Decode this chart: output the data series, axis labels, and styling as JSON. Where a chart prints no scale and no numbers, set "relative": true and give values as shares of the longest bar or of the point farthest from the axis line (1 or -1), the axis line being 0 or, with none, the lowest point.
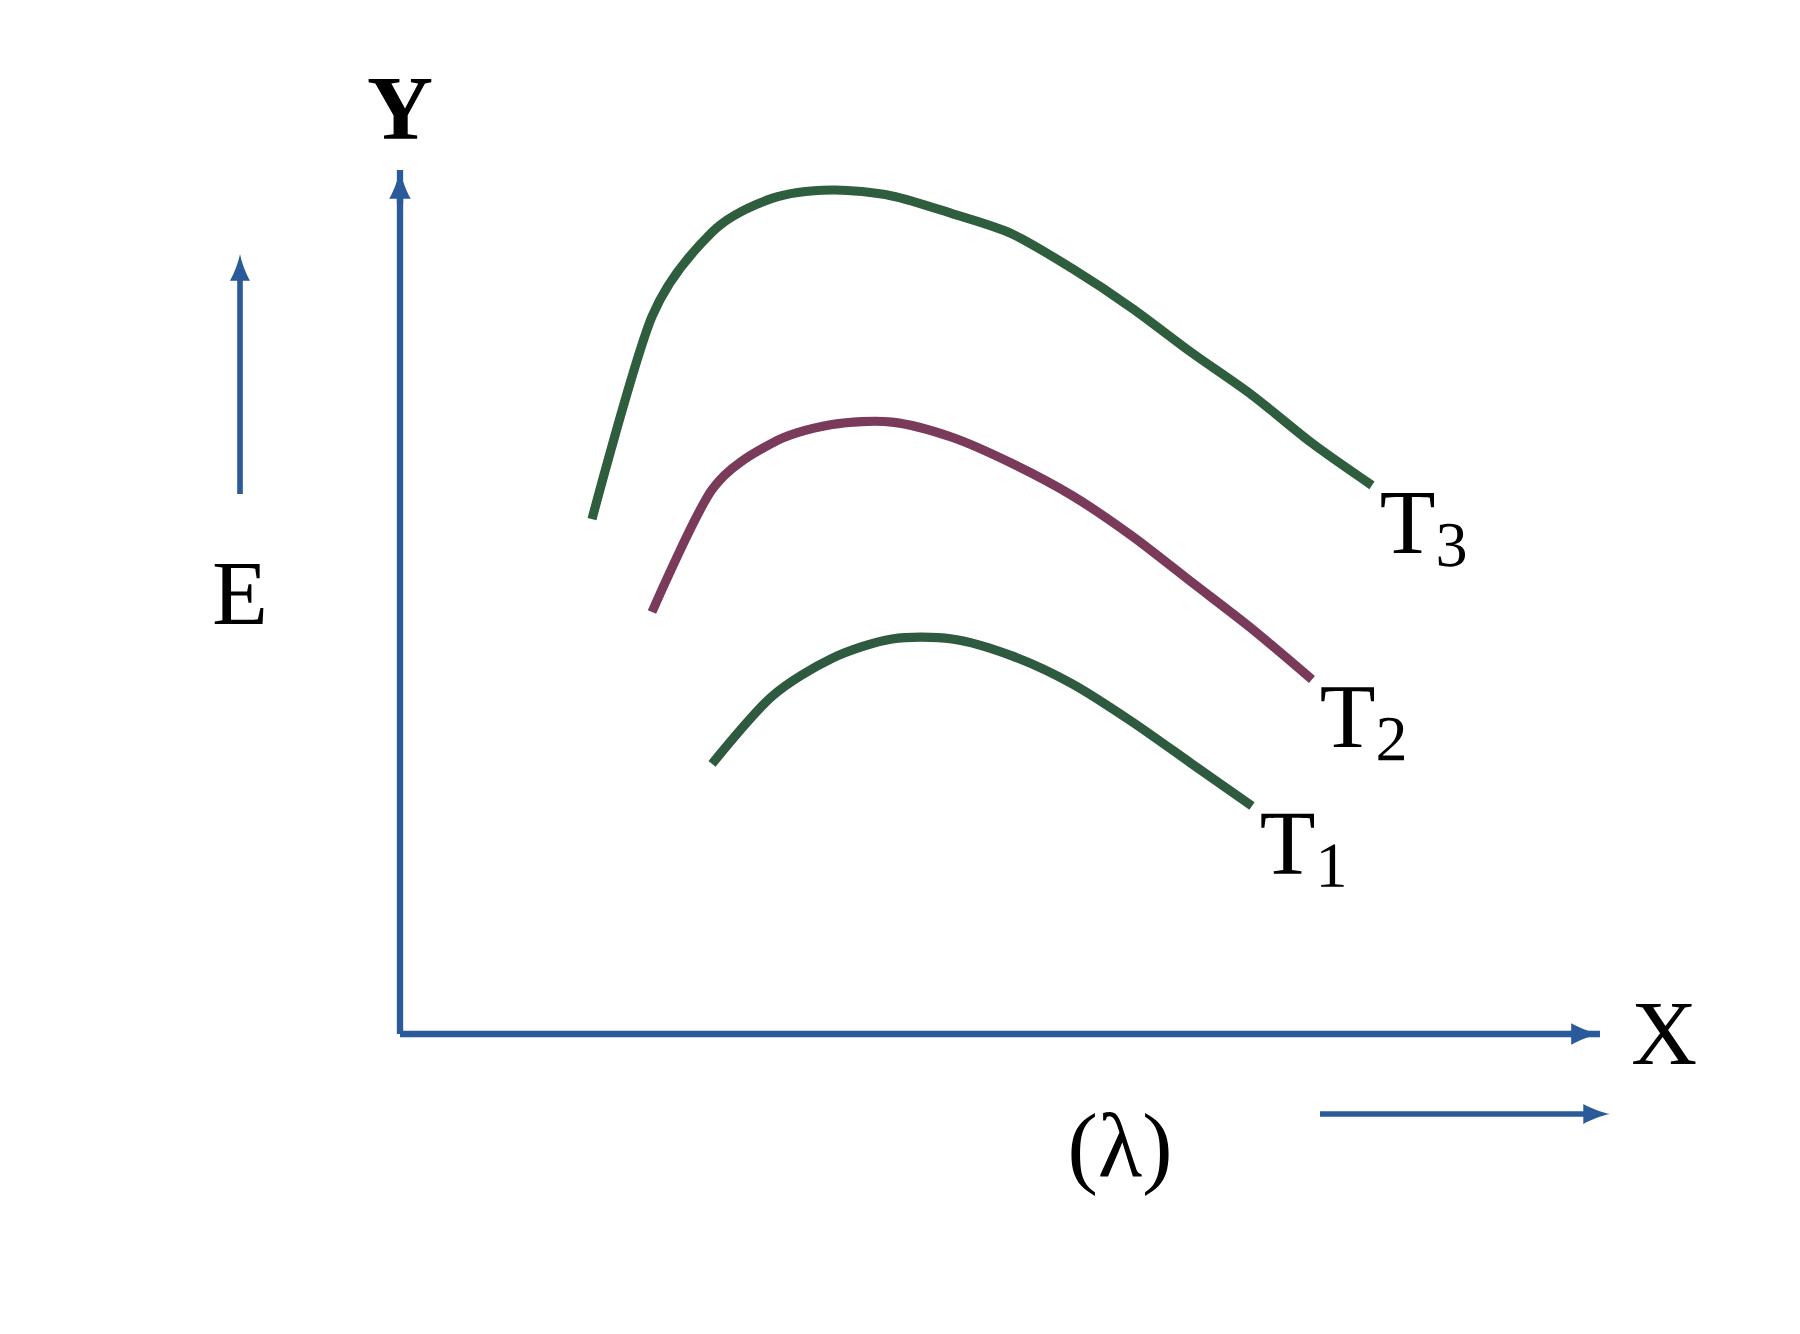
{
  "chart_data": {
    "type": "line",
    "relative": true,
    "xlabel": "(λ)",
    "ylabel": "E",
    "annotations": [
      "Y",
      "X"
    ],
    "categories": [
      null,
      null,
      null,
      null,
      null,
      null,
      null,
      null,
      null,
      null,
      null,
      null,
      null,
      null
    ],
    "series": [
      {
        "name": "T$_{1}$",
        "color": "#2e5a40",
        "values": [
          null,
          null,
          0.32,
          0.4,
          0.445,
          0.468,
          0.468,
          0.448,
          0.415,
          0.37,
          0.32,
          0.27,
          null,
          null
        ]
      },
      {
        "name": "T$_{2}$",
        "color": "#7a3a5a",
        "values": [
          null,
          0.5,
          0.645,
          0.7,
          0.722,
          0.725,
          0.707,
          0.676,
          0.638,
          0.59,
          0.535,
          0.48,
          0.42,
          null
        ]
      },
      {
        "name": "T$_{3}$",
        "color": "#2e5e3e",
        "values": [
          0.61,
          0.85,
          0.95,
          0.99,
          1.0,
          0.993,
          0.972,
          0.948,
          0.907,
          0.86,
          0.807,
          0.757,
          0.7,
          0.65
        ]
      }
    ]
  }
}
